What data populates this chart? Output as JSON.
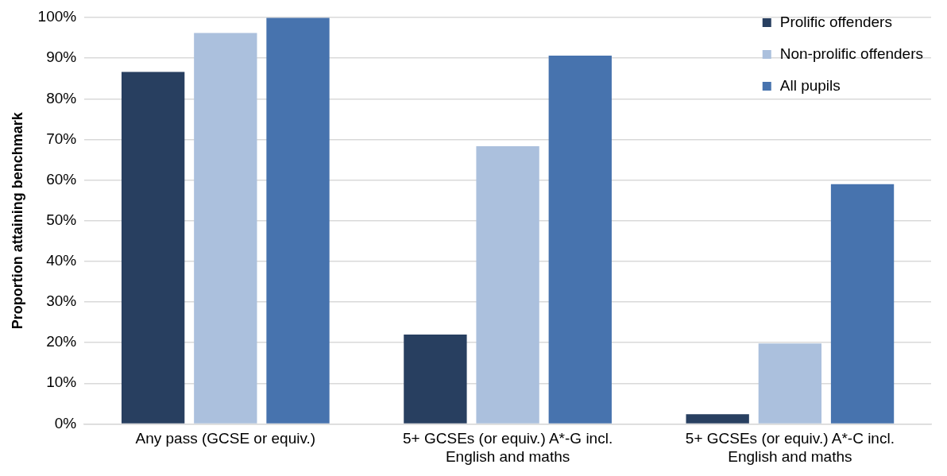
{
  "chart_data": {
    "type": "bar",
    "ylabel": "Proportion attaining benchmark",
    "categories": [
      "Any pass (GCSE or equiv.)",
      "5+ GCSEs (or equiv.) A*-G incl. English and maths",
      "5+ GCSEs (or equiv.) A*-C incl. English and maths"
    ],
    "series": [
      {
        "name": "Prolific offenders",
        "color": "#283f60",
        "values": [
          86.6,
          22.0,
          2.4
        ]
      },
      {
        "name": "Non-prolific offenders",
        "color": "#abc0dd",
        "values": [
          96.2,
          68.3,
          19.8
        ]
      },
      {
        "name": "All pupils",
        "color": "#4773ae",
        "values": [
          99.9,
          90.6,
          59.0
        ]
      }
    ],
    "ylim": [
      0,
      100
    ],
    "yticks": [
      {
        "value": 0,
        "label": "0%"
      },
      {
        "value": 10,
        "label": "10%"
      },
      {
        "value": 20,
        "label": "20%"
      },
      {
        "value": 30,
        "label": "30%"
      },
      {
        "value": 40,
        "label": "40%"
      },
      {
        "value": 50,
        "label": "50%"
      },
      {
        "value": 60,
        "label": "60%"
      },
      {
        "value": 70,
        "label": "70%"
      },
      {
        "value": 80,
        "label": "80%"
      },
      {
        "value": 90,
        "label": "90%"
      },
      {
        "value": 100,
        "label": "100%"
      }
    ],
    "grid": "y",
    "legend": "top right"
  }
}
